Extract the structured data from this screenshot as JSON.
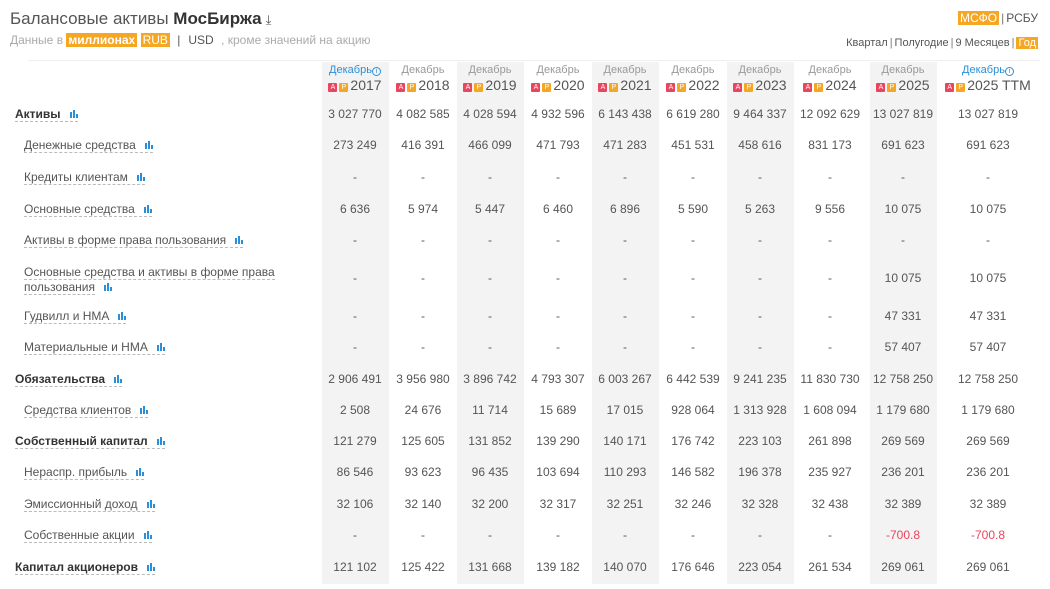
{
  "header": {
    "title_prefix": "Балансовые активы",
    "company": "МосБиржа",
    "download_icon": "download-icon",
    "data_in": "Данные в",
    "units": "миллионах",
    "cur_rub": "RUB",
    "cur_sep": "|",
    "cur_usd": "USD",
    "suffix": ", кроме значений на акцию"
  },
  "standards": {
    "msfo": "МСФО",
    "rsbu": "РСБУ",
    "sep": "|"
  },
  "periods": {
    "items": [
      "Квартал",
      "Полугодие",
      "9 Месяцев",
      "Год"
    ],
    "active": "Год"
  },
  "columns": [
    {
      "month": "Декабрь",
      "year": "2017",
      "info": true
    },
    {
      "month": "Декабрь",
      "year": "2018"
    },
    {
      "month": "Декабрь",
      "year": "2019"
    },
    {
      "month": "Декабрь",
      "year": "2020"
    },
    {
      "month": "Декабрь",
      "year": "2021"
    },
    {
      "month": "Декабрь",
      "year": "2022"
    },
    {
      "month": "Декабрь",
      "year": "2023"
    },
    {
      "month": "Декабрь",
      "year": "2024"
    },
    {
      "month": "Декабрь",
      "year": "2025"
    },
    {
      "month": "Декабрь",
      "year": "2025 TTM",
      "info": true
    }
  ],
  "icons": {
    "pdf": "А",
    "report": "Р",
    "info": "i"
  },
  "rows": [
    {
      "label": "Активы",
      "main": true,
      "values": [
        "3 027 770",
        "4 082 585",
        "4 028 594",
        "4 932 596",
        "6 143 438",
        "6 619 280",
        "9 464 337",
        "12 092 629",
        "13 027 819",
        "13 027 819"
      ]
    },
    {
      "label": "Денежные средства",
      "values": [
        "273 249",
        "416 391",
        "466 099",
        "471 793",
        "471 283",
        "451 531",
        "458 616",
        "831 173",
        "691 623",
        "691 623"
      ]
    },
    {
      "label": "Кредиты клиентам",
      "values": [
        "-",
        "-",
        "-",
        "-",
        "-",
        "-",
        "-",
        "-",
        "-",
        "-"
      ]
    },
    {
      "label": "Основные средства",
      "values": [
        "6 636",
        "5 974",
        "5 447",
        "6 460",
        "6 896",
        "5 590",
        "5 263",
        "9 556",
        "10 075",
        "10 075"
      ]
    },
    {
      "label": "Активы в форме права пользования",
      "values": [
        "-",
        "-",
        "-",
        "-",
        "-",
        "-",
        "-",
        "-",
        "-",
        "-"
      ]
    },
    {
      "label": "Основные средства и активы в форме права",
      "label2": "пользования",
      "values": [
        "-",
        "-",
        "-",
        "-",
        "-",
        "-",
        "-",
        "-",
        "10 075",
        "10 075"
      ]
    },
    {
      "label": "Гудвилл и НМА",
      "values": [
        "-",
        "-",
        "-",
        "-",
        "-",
        "-",
        "-",
        "-",
        "47 331",
        "47 331"
      ]
    },
    {
      "label": "Материальные и НМА",
      "values": [
        "-",
        "-",
        "-",
        "-",
        "-",
        "-",
        "-",
        "-",
        "57 407",
        "57 407"
      ]
    },
    {
      "label": "Обязательства",
      "main": true,
      "values": [
        "2 906 491",
        "3 956 980",
        "3 896 742",
        "4 793 307",
        "6 003 267",
        "6 442 539",
        "9 241 235",
        "11 830 730",
        "12 758 250",
        "12 758 250"
      ]
    },
    {
      "label": "Средства клиентов",
      "values": [
        "2 508",
        "24 676",
        "11 714",
        "15 689",
        "17 015",
        "928 064",
        "1 313 928",
        "1 608 094",
        "1 179 680",
        "1 179 680"
      ]
    },
    {
      "label": "Собственный капитал",
      "main": true,
      "values": [
        "121 279",
        "125 605",
        "131 852",
        "139 290",
        "140 171",
        "176 742",
        "223 103",
        "261 898",
        "269 569",
        "269 569"
      ]
    },
    {
      "label": "Нераспр. прибыль",
      "values": [
        "86 546",
        "93 623",
        "96 435",
        "103 694",
        "110 293",
        "146 582",
        "196 378",
        "235 927",
        "236 201",
        "236 201"
      ]
    },
    {
      "label": "Эмиссионный доход",
      "values": [
        "32 106",
        "32 140",
        "32 200",
        "32 317",
        "32 251",
        "32 246",
        "32 328",
        "32 438",
        "32 389",
        "32 389"
      ]
    },
    {
      "label": "Собственные акции",
      "values": [
        "-",
        "-",
        "-",
        "-",
        "-",
        "-",
        "-",
        "-",
        "-700.8",
        "-700.8"
      ]
    },
    {
      "label": "Капитал акционеров",
      "main": true,
      "values": [
        "121 102",
        "125 422",
        "131 668",
        "139 182",
        "140 070",
        "176 646",
        "223 054",
        "261 534",
        "269 061",
        "269 061"
      ]
    }
  ]
}
